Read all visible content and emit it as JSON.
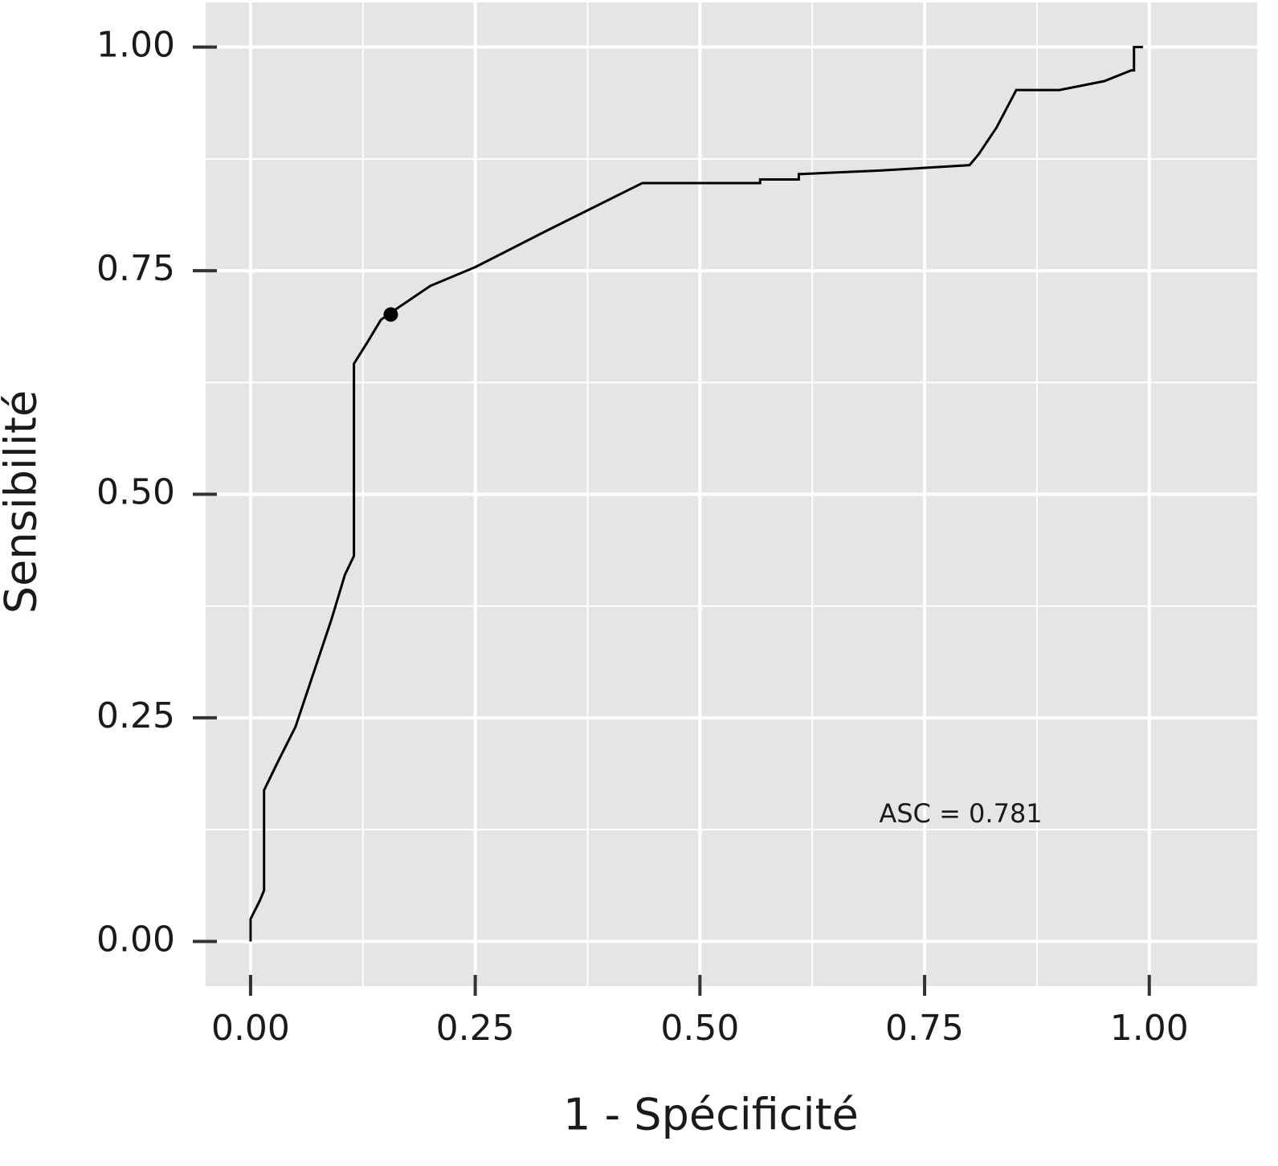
{
  "chart_data": {
    "type": "line",
    "x_label": "1 - Spécificité",
    "y_label": "Sensibilité",
    "annotation": "ASC = 0.781",
    "xlim": [
      -0.05,
      1.12
    ],
    "ylim": [
      -0.05,
      1.05
    ],
    "xticks": [
      {
        "value": 0,
        "label": "0.00"
      },
      {
        "value": 0.25,
        "label": "0.25"
      },
      {
        "value": 0.5,
        "label": "0.50"
      },
      {
        "value": 0.75,
        "label": "0.75"
      },
      {
        "value": 1,
        "label": "1.00"
      }
    ],
    "yticks": [
      {
        "value": 0,
        "label": "0.00"
      },
      {
        "value": 0.25,
        "label": "0.25"
      },
      {
        "value": 0.5,
        "label": "0.50"
      },
      {
        "value": 0.75,
        "label": "0.75"
      },
      {
        "value": 1,
        "label": "1.00"
      }
    ],
    "xminor": [
      0.125,
      0.375,
      0.625,
      0.875
    ],
    "yminor": [
      0.125,
      0.375,
      0.625,
      0.875
    ],
    "grid": true,
    "color": "#000000",
    "x": [
      0,
      0,
      0.005,
      0.01,
      0.015,
      0.015,
      0.03,
      0.05,
      0.07,
      0.09,
      0.105,
      0.115,
      0.115,
      0.13,
      0.145,
      0.156,
      0.2,
      0.25,
      0.33,
      0.4,
      0.436,
      0.567,
      0.567,
      0.61,
      0.61,
      0.7,
      0.8,
      0.81,
      0.83,
      0.852,
      0.9,
      0.95,
      0.98,
      0.983,
      0.983,
      0.993
    ],
    "values": [
      0,
      0.025,
      0.035,
      0.045,
      0.057,
      0.169,
      0.2,
      0.24,
      0.3,
      0.36,
      0.41,
      0.431,
      0.646,
      0.67,
      0.695,
      0.703,
      0.733,
      0.754,
      0.795,
      0.83,
      0.848,
      0.848,
      0.852,
      0.852,
      0.858,
      0.862,
      0.868,
      0.88,
      0.91,
      0.952,
      0.952,
      0.962,
      0.974,
      0.974,
      1.0,
      1.0
    ],
    "points": {
      "x": [
        0.156
      ],
      "values": [
        0.701
      ]
    }
  }
}
